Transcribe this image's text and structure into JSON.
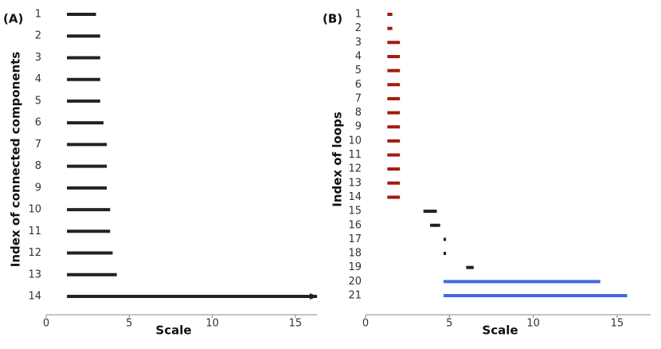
{
  "chart_data": [
    {
      "type": "barcode",
      "panel_label": "(A)",
      "y_label": "Index of connected components",
      "x_label": "Scale",
      "categories": [
        "1",
        "2",
        "3",
        "4",
        "5",
        "6",
        "7",
        "8",
        "9",
        "10",
        "11",
        "12",
        "13",
        "14"
      ],
      "starts": [
        1.25,
        1.25,
        1.25,
        1.25,
        1.25,
        1.25,
        1.25,
        1.25,
        1.25,
        1.25,
        1.25,
        1.25,
        1.25,
        1.25
      ],
      "ends": [
        3.0,
        3.25,
        3.25,
        3.25,
        3.25,
        3.45,
        3.65,
        3.65,
        3.65,
        3.85,
        3.85,
        4.0,
        4.25,
        null
      ],
      "colors": [
        "#222222",
        "#222222",
        "#222222",
        "#222222",
        "#222222",
        "#222222",
        "#222222",
        "#222222",
        "#222222",
        "#222222",
        "#222222",
        "#222222",
        "#222222",
        "#222222"
      ],
      "xlim": [
        0,
        16.3
      ],
      "xticks": [
        0,
        5,
        10,
        15
      ]
    },
    {
      "type": "barcode",
      "panel_label": "(B)",
      "y_label": "Index of loops",
      "x_label": "Scale",
      "categories": [
        "1",
        "2",
        "3",
        "4",
        "5",
        "6",
        "7",
        "8",
        "9",
        "10",
        "11",
        "12",
        "13",
        "14",
        "15",
        "16",
        "17",
        "18",
        "19",
        "20",
        "21"
      ],
      "starts": [
        1.3,
        1.3,
        1.3,
        1.3,
        1.3,
        1.3,
        1.3,
        1.3,
        1.3,
        1.3,
        1.3,
        1.3,
        1.3,
        1.3,
        3.45,
        3.85,
        4.65,
        4.65,
        6.0,
        4.65,
        4.65
      ],
      "ends": [
        1.6,
        1.6,
        2.05,
        2.05,
        2.05,
        2.05,
        2.05,
        2.05,
        2.05,
        2.05,
        2.05,
        2.05,
        2.05,
        2.05,
        4.25,
        4.45,
        4.8,
        4.8,
        6.45,
        14.0,
        15.6
      ],
      "colors": [
        "#a31a0c",
        "#a31a0c",
        "#a31a0c",
        "#a31a0c",
        "#a31a0c",
        "#a31a0c",
        "#a31a0c",
        "#a31a0c",
        "#a31a0c",
        "#a31a0c",
        "#a31a0c",
        "#a31a0c",
        "#a31a0c",
        "#a31a0c",
        "#222222",
        "#222222",
        "#222222",
        "#222222",
        "#222222",
        "#4169e1",
        "#4169e1"
      ],
      "xlim": [
        0,
        17
      ],
      "xticks": [
        0,
        5,
        10,
        15
      ]
    }
  ]
}
